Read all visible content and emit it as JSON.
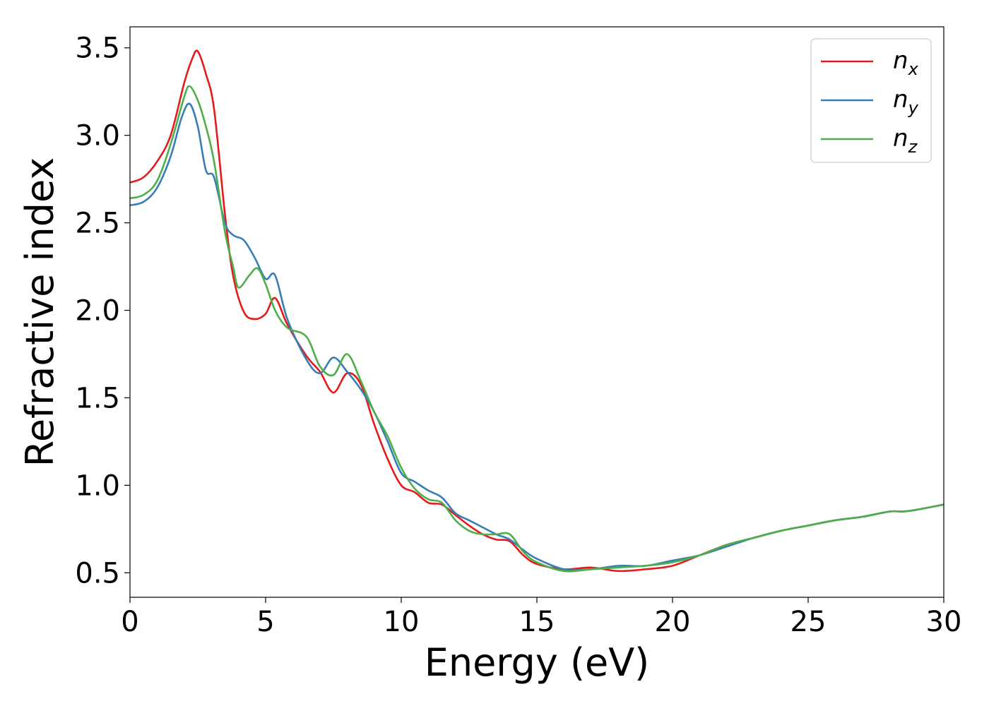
{
  "chart_data": {
    "type": "line",
    "title": "",
    "xlabel": "Energy (eV)",
    "ylabel": "Refractive index",
    "xlim": [
      0,
      30
    ],
    "ylim": [
      0.36,
      3.62
    ],
    "xticks": [
      0,
      5,
      10,
      15,
      20,
      25,
      30
    ],
    "xtick_labels": [
      "0",
      "5",
      "10",
      "15",
      "20",
      "25",
      "30"
    ],
    "yticks": [
      0.5,
      1.0,
      1.5,
      2.0,
      2.5,
      3.0,
      3.5
    ],
    "ytick_labels": [
      "0.5",
      "1.0",
      "1.5",
      "2.0",
      "2.5",
      "3.0",
      "3.5"
    ],
    "grid": false,
    "legend_position": "top-right",
    "series": [
      {
        "name": "n",
        "subscript": "x",
        "color": "#e41a1c",
        "x": [
          0,
          0.5,
          1.0,
          1.5,
          2.0,
          2.3,
          2.5,
          2.8,
          3.1,
          3.5,
          3.8,
          4.2,
          4.6,
          5.0,
          5.35,
          5.8,
          6.5,
          7.0,
          7.5,
          8.0,
          8.5,
          9.0,
          9.5,
          10.0,
          10.5,
          11.0,
          11.5,
          12.0,
          12.5,
          13.0,
          13.5,
          14.0,
          14.5,
          15.0,
          16.0,
          17.0,
          18.0,
          19.0,
          20.0,
          21.0,
          22.0,
          23.0,
          24.0,
          25.0,
          26.0,
          27.0,
          28.0,
          28.5,
          29.0,
          30.0
        ],
        "y": [
          2.73,
          2.76,
          2.85,
          3.0,
          3.3,
          3.44,
          3.48,
          3.35,
          3.15,
          2.55,
          2.2,
          1.99,
          1.95,
          1.98,
          2.07,
          1.92,
          1.74,
          1.65,
          1.53,
          1.64,
          1.58,
          1.35,
          1.15,
          1.0,
          0.96,
          0.9,
          0.89,
          0.83,
          0.77,
          0.72,
          0.69,
          0.68,
          0.6,
          0.55,
          0.52,
          0.53,
          0.51,
          0.52,
          0.54,
          0.6,
          0.66,
          0.7,
          0.74,
          0.77,
          0.8,
          0.82,
          0.85,
          0.85,
          0.86,
          0.89
        ]
      },
      {
        "name": "n",
        "subscript": "y",
        "color": "#377eb8",
        "x": [
          0,
          0.5,
          1.0,
          1.5,
          1.9,
          2.2,
          2.5,
          2.8,
          3.1,
          3.5,
          3.8,
          4.2,
          4.6,
          5.0,
          5.35,
          5.8,
          6.5,
          7.0,
          7.5,
          8.0,
          8.5,
          9.0,
          9.5,
          10.0,
          10.5,
          11.0,
          11.5,
          12.0,
          12.5,
          13.0,
          13.5,
          14.0,
          14.5,
          15.0,
          16.0,
          17.0,
          18.0,
          19.0,
          20.0,
          21.0,
          22.0,
          23.0,
          24.0,
          25.0,
          26.0,
          27.0,
          28.0,
          28.5,
          29.0,
          30.0
        ],
        "y": [
          2.6,
          2.62,
          2.7,
          2.88,
          3.1,
          3.18,
          3.05,
          2.8,
          2.76,
          2.5,
          2.43,
          2.4,
          2.3,
          2.18,
          2.2,
          1.95,
          1.72,
          1.64,
          1.73,
          1.65,
          1.55,
          1.42,
          1.25,
          1.07,
          1.02,
          0.97,
          0.93,
          0.84,
          0.8,
          0.76,
          0.72,
          0.69,
          0.63,
          0.58,
          0.52,
          0.52,
          0.54,
          0.54,
          0.57,
          0.6,
          0.65,
          0.7,
          0.74,
          0.77,
          0.8,
          0.82,
          0.85,
          0.85,
          0.86,
          0.89
        ]
      },
      {
        "name": "n",
        "subscript": "z",
        "color": "#4daf4a",
        "x": [
          0,
          0.5,
          1.0,
          1.5,
          2.0,
          2.2,
          2.5,
          2.8,
          3.1,
          3.5,
          3.8,
          4.0,
          4.4,
          4.7,
          5.0,
          5.35,
          5.8,
          6.5,
          7.0,
          7.5,
          8.0,
          8.5,
          9.0,
          9.5,
          10.0,
          10.5,
          11.0,
          11.5,
          12.0,
          12.5,
          13.0,
          13.5,
          14.0,
          14.5,
          15.0,
          16.0,
          17.0,
          18.0,
          19.0,
          20.0,
          21.0,
          22.0,
          23.0,
          24.0,
          25.0,
          26.0,
          27.0,
          28.0,
          28.5,
          29.0,
          30.0
        ],
        "y": [
          2.64,
          2.66,
          2.74,
          2.95,
          3.22,
          3.28,
          3.2,
          3.05,
          2.85,
          2.45,
          2.25,
          2.13,
          2.2,
          2.24,
          2.15,
          2.0,
          1.9,
          1.85,
          1.68,
          1.63,
          1.75,
          1.6,
          1.42,
          1.28,
          1.1,
          0.98,
          0.92,
          0.9,
          0.8,
          0.74,
          0.72,
          0.72,
          0.72,
          0.62,
          0.56,
          0.51,
          0.52,
          0.53,
          0.54,
          0.56,
          0.6,
          0.66,
          0.7,
          0.74,
          0.77,
          0.8,
          0.82,
          0.85,
          0.85,
          0.86,
          0.89
        ]
      }
    ]
  }
}
